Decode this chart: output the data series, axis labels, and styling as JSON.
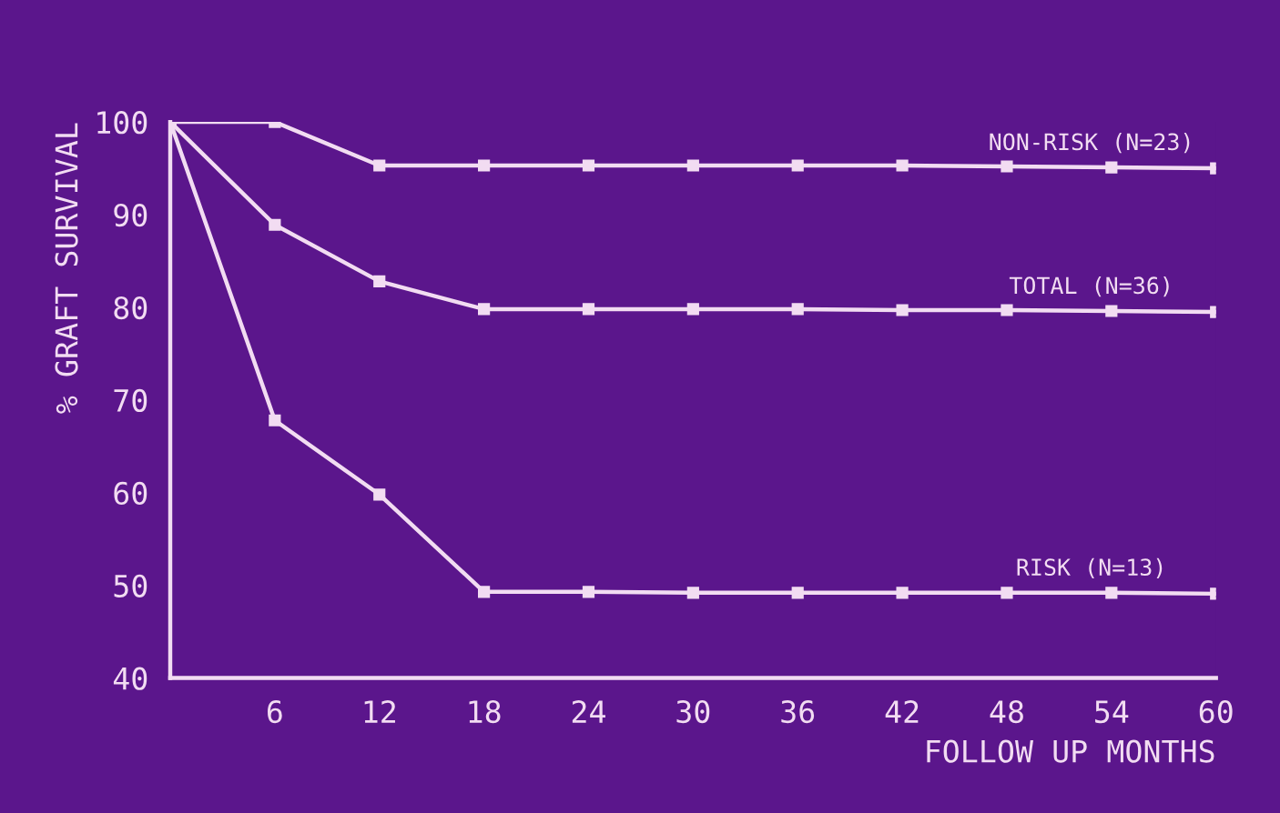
{
  "chart_data": {
    "type": "line",
    "xlabel": "FOLLOW UP MONTHS",
    "ylabel": "% GRAFT SURVIVAL",
    "x": [
      0,
      6,
      12,
      18,
      24,
      30,
      36,
      42,
      48,
      54,
      60
    ],
    "series": [
      {
        "name": "NON-RISK (N=23)",
        "color": "#f2dcf2",
        "values": [
          100,
          100,
          95.3,
          95.3,
          95.3,
          95.3,
          95.3,
          95.3,
          95.2,
          95.1,
          95
        ]
      },
      {
        "name": "TOTAL (N=36)",
        "color": "#f2dcf2",
        "values": [
          100,
          88.9,
          82.8,
          79.8,
          79.8,
          79.8,
          79.8,
          79.7,
          79.7,
          79.6,
          79.5
        ]
      },
      {
        "name": "RISK (N=13)",
        "color": "#f2dcf2",
        "values": [
          100,
          67.8,
          59.8,
          49.3,
          49.3,
          49.2,
          49.2,
          49.2,
          49.2,
          49.2,
          49.1
        ]
      }
    ],
    "xlim": [
      0,
      60
    ],
    "xticks": [
      6,
      12,
      18,
      24,
      30,
      36,
      42,
      48,
      54,
      60
    ],
    "ylim": [
      40,
      100
    ],
    "yticks": [
      40,
      50,
      60,
      70,
      80,
      90,
      100
    ],
    "grid": false,
    "legend": false,
    "marker": "square",
    "line_style": "solid"
  }
}
